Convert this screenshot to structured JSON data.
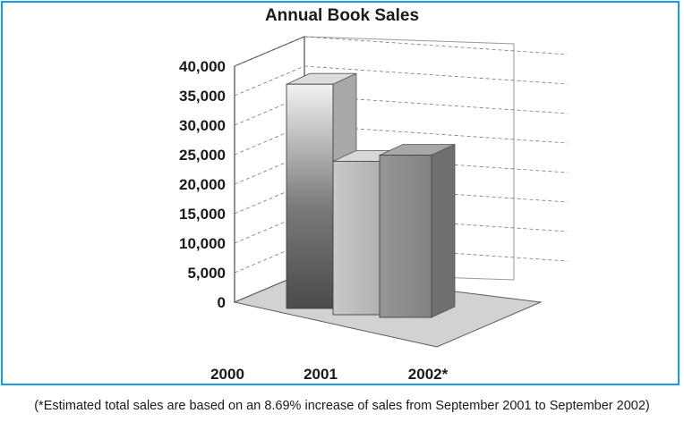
{
  "chart_data": {
    "type": "bar",
    "title": "Annual Book Sales",
    "categories": [
      "2000",
      "2001",
      "2002*"
    ],
    "values": [
      38000,
      26000,
      27500
    ],
    "yticks": [
      "0",
      "5,000",
      "10,000",
      "15,000",
      "20,000",
      "25,000",
      "30,000",
      "35,000",
      "40,000"
    ],
    "ylim": [
      0,
      40000
    ],
    "grid": true,
    "style": "3d",
    "colors": {
      "frame": "#1a9be6",
      "floor": "#d2d2d2",
      "bar_2000": "#8a8a8a",
      "bar_2001": "#bdbdbd",
      "bar_2002": "#8f8f8f"
    }
  },
  "footnote": "(*Estimated total sales are based on an 8.69% increase of sales from September 2001 to September 2002)"
}
